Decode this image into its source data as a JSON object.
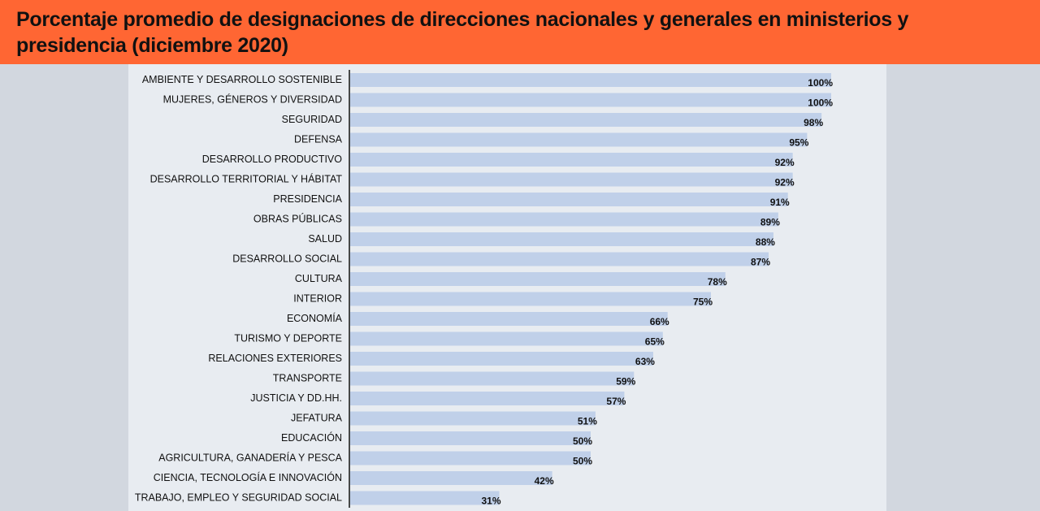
{
  "title": "Porcentaje promedio de designaciones de direcciones nacionales y generales en ministerios y presidencia (diciembre 2020)",
  "colors": {
    "header_bg": "#ff6633",
    "bar": "#c0d0e9",
    "panel_bg": "#e8ecf1",
    "outer_bg": "#d2d7df",
    "axis": "#111111"
  },
  "chart_data": {
    "type": "bar",
    "orientation": "horizontal",
    "title": "Porcentaje promedio de designaciones de direcciones nacionales y generales en ministerios y presidencia (diciembre 2020)",
    "xlabel": "",
    "ylabel": "",
    "xlim": [
      0,
      100
    ],
    "grid": false,
    "legend": "none",
    "value_suffix": "%",
    "categories": [
      "AMBIENTE Y DESARROLLO SOSTENIBLE",
      "MUJERES, GÉNEROS Y DIVERSIDAD",
      "SEGURIDAD",
      "DEFENSA",
      "DESARROLLO PRODUCTIVO",
      "DESARROLLO TERRITORIAL Y HÁBITAT",
      "PRESIDENCIA",
      "OBRAS PÚBLICAS",
      "SALUD",
      "DESARROLLO SOCIAL",
      "CULTURA",
      "INTERIOR",
      "ECONOMÍA",
      "TURISMO Y DEPORTE",
      "RELACIONES EXTERIORES",
      "TRANSPORTE",
      "JUSTICIA Y DD.HH.",
      "JEFATURA",
      "EDUCACIÓN",
      "AGRICULTURA, GANADERÍA Y PESCA",
      "CIENCIA, TECNOLOGÍA E INNOVACIÓN",
      "TRABAJO, EMPLEO Y SEGURIDAD SOCIAL"
    ],
    "values": [
      100,
      100,
      98,
      95,
      92,
      92,
      91,
      89,
      88,
      87,
      78,
      75,
      66,
      65,
      63,
      59,
      57,
      51,
      50,
      50,
      42,
      31
    ]
  }
}
